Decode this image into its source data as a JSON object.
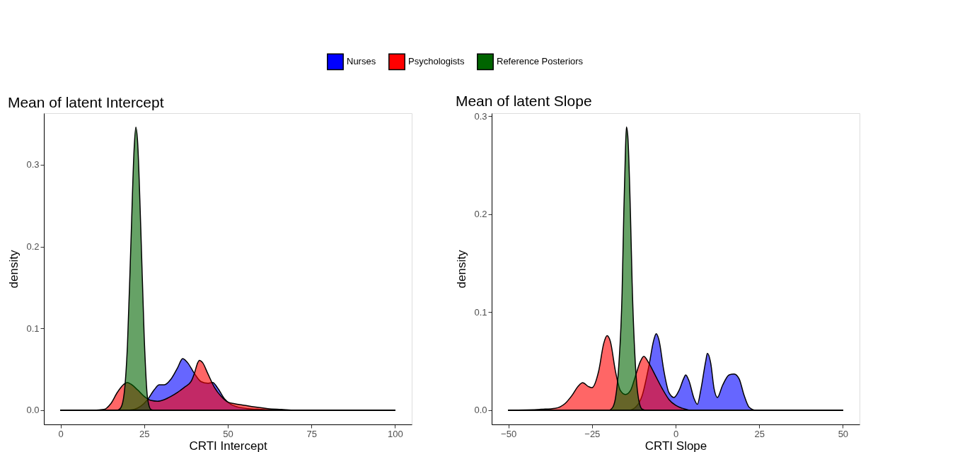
{
  "chart_data": [
    {
      "type": "area",
      "title": "Mean of latent Intercept",
      "xlabel": "CRTI Intercept",
      "ylabel": "density",
      "xlim": [
        -5,
        105
      ],
      "ylim": [
        -0.0173,
        0.363
      ],
      "xticks": [
        0,
        25,
        50,
        75,
        100
      ],
      "yticks": [
        {
          "value": 0,
          "label": "0.0"
        },
        {
          "value": 0.1,
          "label": "0.1"
        },
        {
          "value": 0.2,
          "label": "0.2"
        },
        {
          "value": 0.3,
          "label": "0.3"
        }
      ],
      "grid": false,
      "legend": "top",
      "series": [
        {
          "name": "Nurses",
          "color": "#0000ff",
          "x": [
            0,
            10,
            20,
            22,
            24,
            26,
            28,
            29.5,
            31,
            33,
            35,
            36.5,
            38,
            40,
            42,
            44,
            45.5,
            47,
            49,
            51,
            53,
            56,
            60,
            65,
            80,
            100
          ],
          "values": [
            0,
            0,
            0,
            0.001,
            0.005,
            0.013,
            0.025,
            0.031,
            0.031,
            0.038,
            0.052,
            0.063,
            0.058,
            0.045,
            0.035,
            0.033,
            0.034,
            0.027,
            0.014,
            0.007,
            0.004,
            0.002,
            0.001,
            0,
            0,
            0
          ]
        },
        {
          "name": "Psychologists",
          "color": "#ff0000",
          "x": [
            0,
            10,
            13,
            15,
            17,
            19,
            20,
            21,
            23,
            25,
            27,
            29,
            31,
            33,
            35,
            37,
            39,
            40,
            41,
            41.5,
            42.5,
            44,
            46,
            48,
            50,
            52,
            55,
            58,
            62,
            66,
            70,
            100
          ],
          "values": [
            0,
            0,
            0.001,
            0.008,
            0.022,
            0.032,
            0.034,
            0.032,
            0.025,
            0.017,
            0.012,
            0.011,
            0.013,
            0.017,
            0.022,
            0.028,
            0.035,
            0.045,
            0.058,
            0.061,
            0.058,
            0.045,
            0.028,
            0.017,
            0.01,
            0.008,
            0.006,
            0.004,
            0.002,
            0.001,
            0,
            0
          ]
        },
        {
          "name": "Reference Posteriors",
          "color": "#006400",
          "x": [
            0,
            10,
            17,
            18,
            19,
            20,
            21,
            22,
            22.5,
            23,
            24,
            25,
            26,
            27,
            28,
            50,
            100
          ],
          "values": [
            0,
            0,
            0,
            0.003,
            0.02,
            0.08,
            0.2,
            0.32,
            0.346,
            0.33,
            0.22,
            0.09,
            0.015,
            0.001,
            0,
            0,
            0
          ]
        }
      ]
    },
    {
      "type": "area",
      "title": "Mean of latent Slope",
      "xlabel": "CRTI Slope",
      "ylabel": "density",
      "xlim": [
        -55,
        55
      ],
      "ylim": [
        -0.0145,
        0.303
      ],
      "xticks": [
        -50,
        -25,
        0,
        25,
        50
      ],
      "yticks": [
        {
          "value": 0,
          "label": "0.0"
        },
        {
          "value": 0.1,
          "label": "0.1"
        },
        {
          "value": 0.2,
          "label": "0.2"
        },
        {
          "value": 0.3,
          "label": "0.3"
        }
      ],
      "grid": false,
      "legend": "top",
      "series": [
        {
          "name": "Nurses",
          "color": "#0000ff",
          "x": [
            -50,
            -30,
            -14,
            -12,
            -10,
            -8,
            -6.5,
            -5.8,
            -5,
            -3.5,
            -2,
            -0.5,
            1,
            2.5,
            3,
            4,
            5.5,
            6.5,
            7.5,
            9,
            9.5,
            10.5,
            11.5,
            12.5,
            14,
            16,
            17.5,
            19,
            20.5,
            22,
            24,
            35,
            50
          ],
          "values": [
            0,
            0,
            0,
            0.003,
            0.015,
            0.045,
            0.072,
            0.078,
            0.072,
            0.04,
            0.018,
            0.013,
            0.02,
            0.033,
            0.036,
            0.03,
            0.012,
            0.006,
            0.02,
            0.05,
            0.058,
            0.048,
            0.022,
            0.013,
            0.025,
            0.036,
            0.037,
            0.032,
            0.015,
            0.003,
            0,
            0,
            0
          ]
        },
        {
          "name": "Psychologists",
          "color": "#ff0000",
          "x": [
            -50,
            -40,
            -36,
            -33,
            -31,
            -29,
            -27.8,
            -26,
            -25,
            -23,
            -21.5,
            -20.5,
            -19.5,
            -18,
            -16.5,
            -15,
            -13.5,
            -12,
            -10.5,
            -9.5,
            -8,
            -6,
            -4,
            -2,
            0,
            2,
            5,
            20,
            50
          ],
          "values": [
            0,
            0.001,
            0.002,
            0.007,
            0.015,
            0.025,
            0.028,
            0.024,
            0.023,
            0.04,
            0.068,
            0.076,
            0.07,
            0.04,
            0.02,
            0.016,
            0.02,
            0.035,
            0.05,
            0.055,
            0.048,
            0.035,
            0.022,
            0.011,
            0.005,
            0.002,
            0,
            0,
            0
          ]
        },
        {
          "name": "Reference Posteriors",
          "color": "#006400",
          "x": [
            -50,
            -30,
            -20,
            -19,
            -18,
            -17,
            -16,
            -15.5,
            -15,
            -14.7,
            -14.3,
            -13.5,
            -13,
            -12,
            -11,
            -10,
            -9,
            10,
            50
          ],
          "values": [
            0,
            0,
            0,
            0.002,
            0.012,
            0.045,
            0.12,
            0.2,
            0.265,
            0.289,
            0.28,
            0.2,
            0.13,
            0.045,
            0.01,
            0.001,
            0,
            0,
            0
          ]
        }
      ]
    }
  ]
}
